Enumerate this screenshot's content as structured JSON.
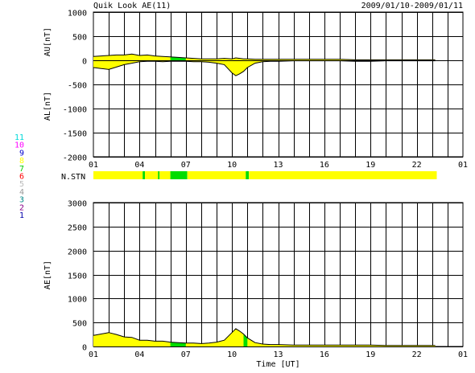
{
  "title": "Quik Look AE(11)",
  "date_range": "2009/01/10-2009/01/11",
  "colors": {
    "fill_yellow": "#ffff00",
    "fill_green": "#00dd00",
    "line": "#000000",
    "grid": "#000000",
    "stn_yellow": "#ffff00",
    "stn_green": "#00dd00"
  },
  "station_legend": [
    {
      "label": "11",
      "color": "#00d8d8"
    },
    {
      "label": "10",
      "color": "#ff00ff"
    },
    {
      "label": "9",
      "color": "#0000cc"
    },
    {
      "label": "8",
      "color": "#ffff00"
    },
    {
      "label": "7",
      "color": "#00cc00"
    },
    {
      "label": "6",
      "color": "#ff0000"
    },
    {
      "label": "5",
      "color": "#bbbbbb"
    },
    {
      "label": "4",
      "color": "#999999"
    },
    {
      "label": "3",
      "color": "#008888"
    },
    {
      "label": "2",
      "color": "#880088"
    },
    {
      "label": "1",
      "color": "#0000aa"
    }
  ],
  "nstn_label": "N.STN",
  "chart_data": [
    {
      "type": "area",
      "ylabel_upper": "AU[nT]",
      "ylabel_lower": "AL[nT]",
      "ylim": [
        -2000,
        1000
      ],
      "yticks": [
        "1000",
        "500",
        "0",
        "-500",
        "-1000",
        "-1500",
        "-2000"
      ],
      "xlim": [
        1,
        25
      ],
      "xticks": [
        "01",
        "04",
        "07",
        "10",
        "13",
        "16",
        "19",
        "22",
        "01"
      ],
      "grid": true,
      "au": {
        "x": [
          1.0,
          1.5,
          2.0,
          2.5,
          3.0,
          3.5,
          4.0,
          4.5,
          5.0,
          5.5,
          6.0,
          6.5,
          7.0,
          7.5,
          8.0,
          8.5,
          9.0,
          9.5,
          10.0,
          10.25,
          10.5,
          10.75,
          11.0,
          11.5,
          12.0,
          12.5,
          13.0,
          14.0,
          15.0,
          16.0,
          17.0,
          18.0,
          19.0,
          20.0,
          21.0,
          22.0,
          23.2
        ],
        "y": [
          80,
          90,
          100,
          110,
          110,
          130,
          100,
          110,
          90,
          80,
          70,
          60,
          50,
          40,
          30,
          30,
          30,
          40,
          30,
          50,
          40,
          30,
          30,
          20,
          20,
          20,
          20,
          20,
          20,
          20,
          20,
          10,
          10,
          10,
          10,
          10,
          10
        ]
      },
      "al": {
        "x": [
          1.0,
          1.5,
          2.0,
          2.5,
          3.0,
          3.5,
          4.0,
          4.5,
          5.0,
          5.5,
          6.0,
          6.5,
          7.0,
          7.5,
          8.0,
          8.5,
          9.0,
          9.5,
          10.0,
          10.25,
          10.5,
          10.75,
          11.0,
          11.5,
          12.0,
          12.5,
          13.0,
          14.0,
          15.0,
          16.0,
          17.0,
          18.0,
          19.0,
          20.0,
          21.0,
          22.0,
          23.2
        ],
        "y": [
          -150,
          -170,
          -190,
          -140,
          -90,
          -60,
          -30,
          -20,
          -20,
          -30,
          -20,
          -20,
          -20,
          -30,
          -30,
          -40,
          -60,
          -90,
          -260,
          -320,
          -280,
          -230,
          -150,
          -60,
          -30,
          -20,
          -20,
          -10,
          -10,
          -10,
          -10,
          -20,
          -20,
          -10,
          -10,
          -10,
          -10
        ]
      }
    },
    {
      "type": "area",
      "ylabel": "AE[nT]",
      "ylim": [
        0,
        3000
      ],
      "yticks": [
        "3000",
        "2500",
        "2000",
        "1500",
        "1000",
        "500",
        "0"
      ],
      "xlim": [
        1,
        25
      ],
      "xticks": [
        "01",
        "04",
        "07",
        "10",
        "13",
        "16",
        "19",
        "22",
        "01"
      ],
      "xlabel": "Time [UT]",
      "grid": true,
      "ae": {
        "x": [
          1.0,
          1.5,
          2.0,
          2.5,
          3.0,
          3.5,
          4.0,
          4.5,
          5.0,
          5.5,
          6.0,
          6.5,
          7.0,
          7.5,
          8.0,
          8.5,
          9.0,
          9.5,
          10.0,
          10.25,
          10.5,
          10.75,
          11.0,
          11.5,
          12.0,
          12.5,
          13.0,
          14.0,
          15.0,
          16.0,
          17.0,
          18.0,
          19.0,
          20.0,
          21.0,
          22.0,
          23.2
        ],
        "y": [
          230,
          260,
          290,
          250,
          200,
          190,
          130,
          130,
          110,
          110,
          90,
          80,
          70,
          70,
          60,
          70,
          90,
          130,
          290,
          370,
          320,
          260,
          180,
          80,
          50,
          40,
          40,
          30,
          30,
          30,
          30,
          30,
          30,
          20,
          20,
          20,
          20
        ]
      }
    },
    {
      "type": "table",
      "label": "N.STN",
      "segments": [
        {
          "start": 1.0,
          "end": 4.2,
          "color": "#ffff00"
        },
        {
          "start": 4.2,
          "end": 4.35,
          "color": "#00dd00"
        },
        {
          "start": 4.35,
          "end": 5.2,
          "color": "#ffff00"
        },
        {
          "start": 5.2,
          "end": 5.3,
          "color": "#00dd00"
        },
        {
          "start": 5.3,
          "end": 6.0,
          "color": "#ffff00"
        },
        {
          "start": 6.0,
          "end": 7.1,
          "color": "#00dd00"
        },
        {
          "start": 7.1,
          "end": 10.9,
          "color": "#ffff00"
        },
        {
          "start": 10.9,
          "end": 11.1,
          "color": "#00dd00"
        },
        {
          "start": 11.1,
          "end": 23.3,
          "color": "#ffff00"
        }
      ]
    }
  ]
}
